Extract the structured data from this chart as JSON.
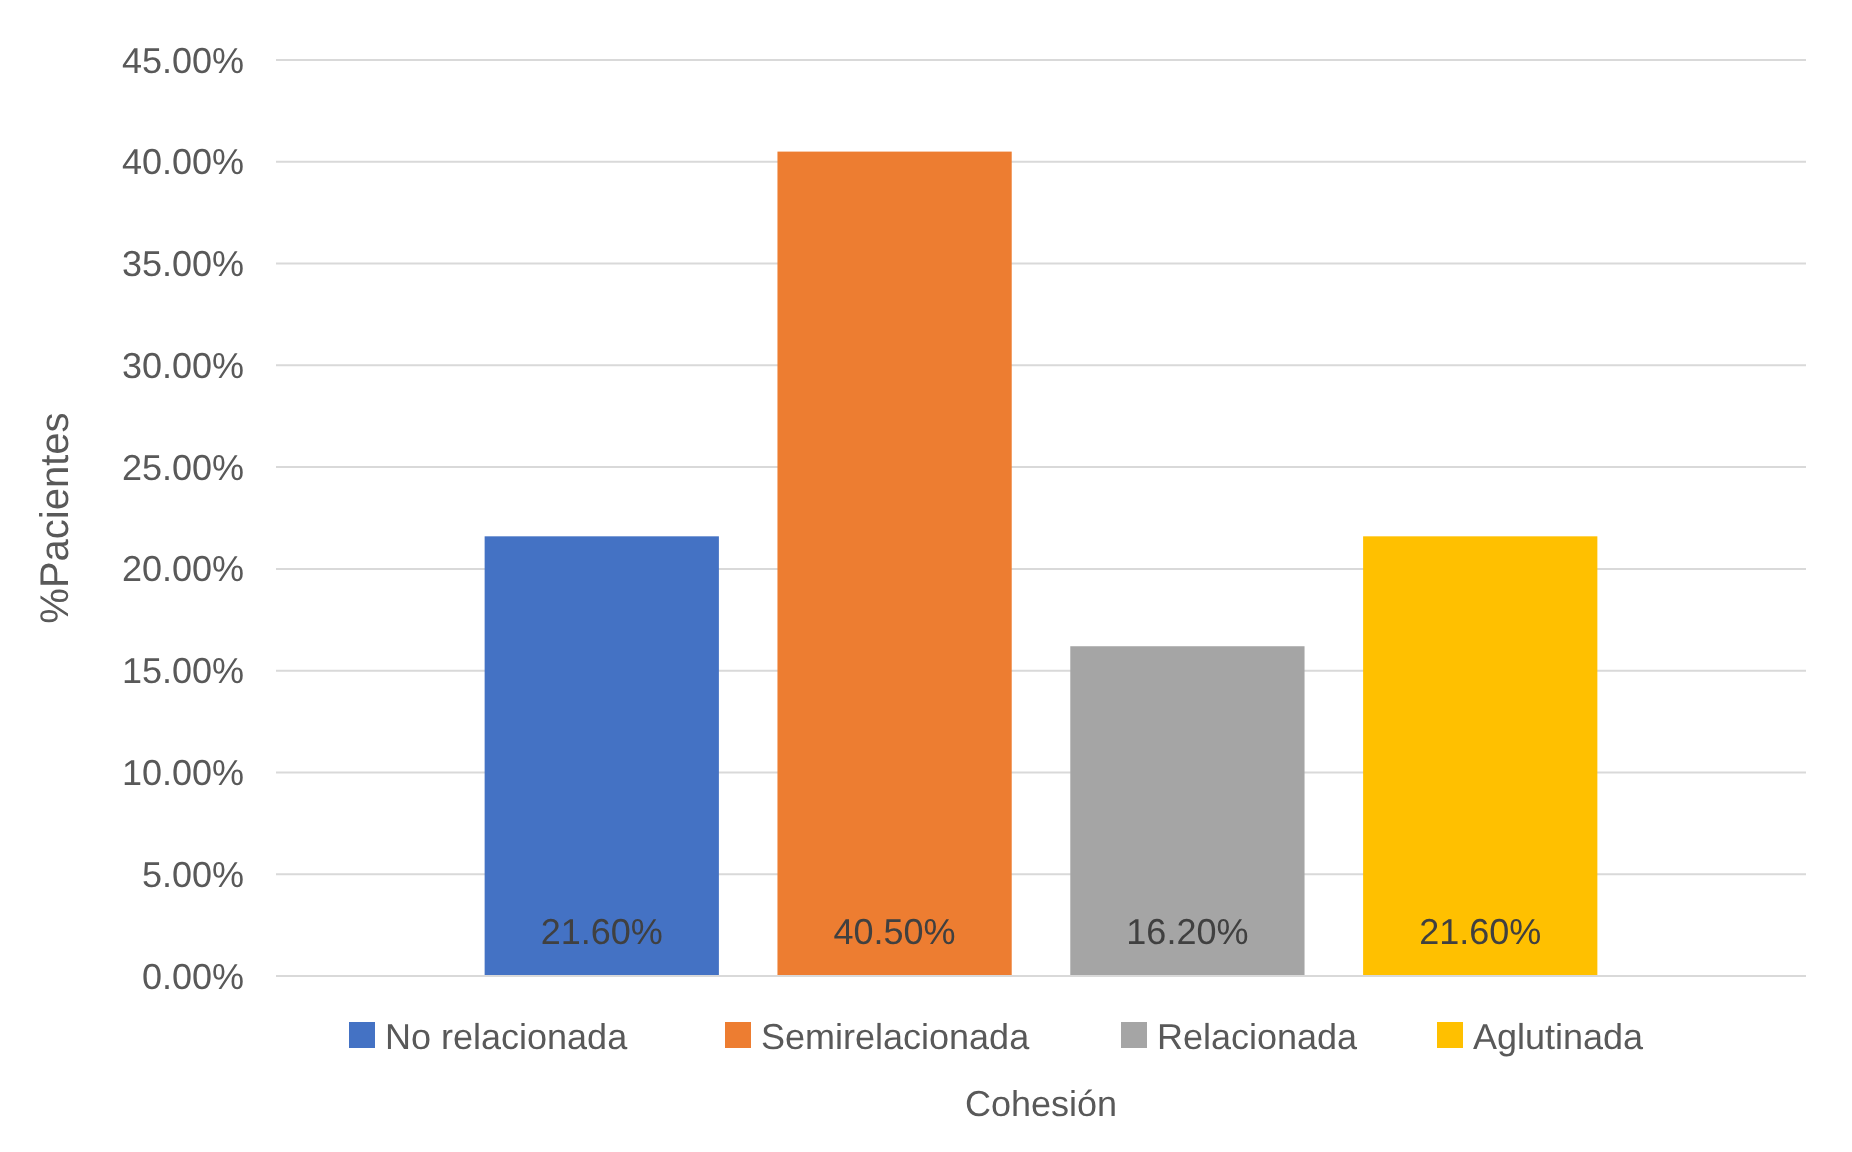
{
  "chart_data": {
    "type": "bar",
    "xlabel": "Cohesión",
    "ylabel": "%Pacientes",
    "categories": [
      null
    ],
    "series": [
      {
        "name": "No relacionada",
        "color": "#4472c4",
        "values": [
          21.6
        ],
        "value_labels": [
          "21.60%"
        ]
      },
      {
        "name": "Semirelacionada",
        "color": "#ed7d31",
        "values": [
          40.5
        ],
        "value_labels": [
          "40.50%"
        ]
      },
      {
        "name": "Relacionada",
        "color": "#a5a5a5",
        "values": [
          16.2
        ],
        "value_labels": [
          "16.20%"
        ]
      },
      {
        "name": "Aglutinada",
        "color": "#ffc000",
        "values": [
          21.6
        ],
        "value_labels": [
          "21.60%"
        ]
      }
    ],
    "ylim": [
      0,
      45
    ],
    "yticks": [
      {
        "value": 0,
        "label": "0.00%"
      },
      {
        "value": 5,
        "label": "5.00%"
      },
      {
        "value": 10,
        "label": "10.00%"
      },
      {
        "value": 15,
        "label": "15.00%"
      },
      {
        "value": 20,
        "label": "20.00%"
      },
      {
        "value": 25,
        "label": "25.00%"
      },
      {
        "value": 30,
        "label": "30.00%"
      },
      {
        "value": 35,
        "label": "35.00%"
      },
      {
        "value": 40,
        "label": "40.00%"
      },
      {
        "value": 45,
        "label": "45.00%"
      }
    ],
    "grid": true,
    "legend": "bottom"
  }
}
